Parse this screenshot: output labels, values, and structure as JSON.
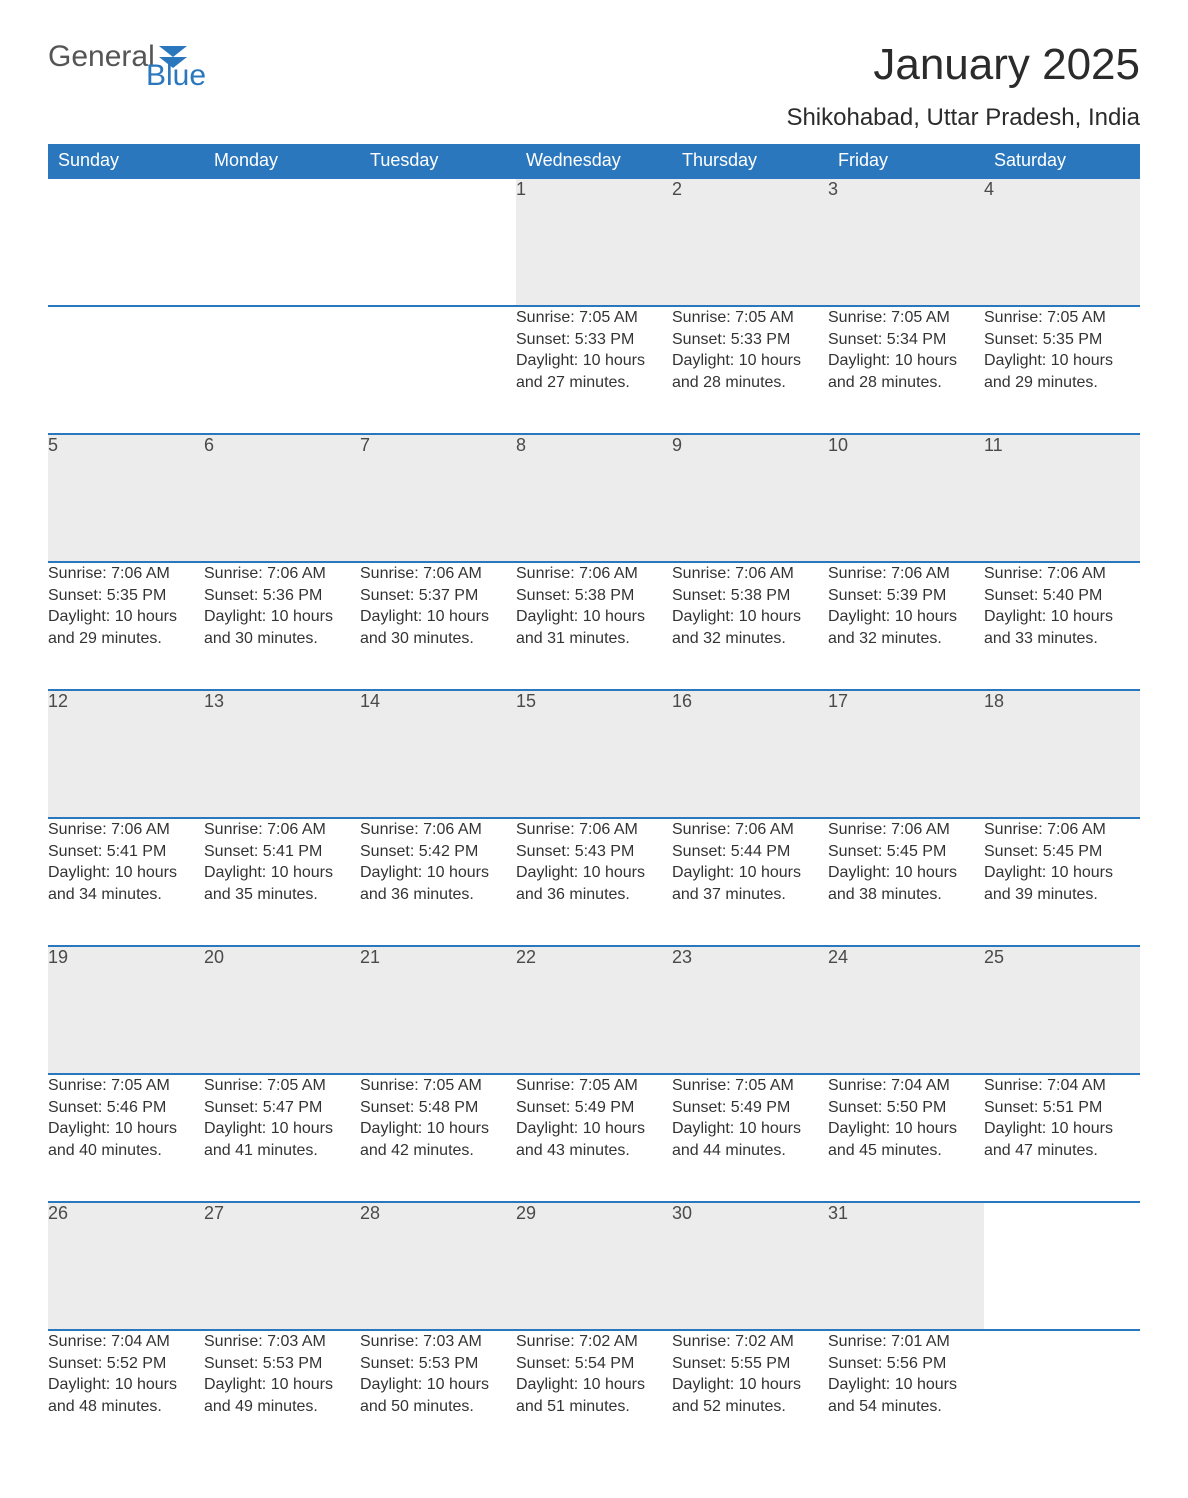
{
  "brand": {
    "part1": "General",
    "part2": "Blue",
    "accent": "#2a77be",
    "text_color": "#555555"
  },
  "title": "January 2025",
  "location": "Shikohabad, Uttar Pradesh, India",
  "day_headers": [
    "Sunday",
    "Monday",
    "Tuesday",
    "Wednesday",
    "Thursday",
    "Friday",
    "Saturday"
  ],
  "colors": {
    "header_bg": "#2a77be",
    "header_text": "#ffffff",
    "daynum_bg": "#ececec",
    "row_border": "#2a77be",
    "body_text": "#333333",
    "background": "#ffffff"
  },
  "weeks": [
    [
      null,
      null,
      null,
      {
        "n": "1",
        "sunrise": "7:05 AM",
        "sunset": "5:33 PM",
        "daylight": "10 hours and 27 minutes."
      },
      {
        "n": "2",
        "sunrise": "7:05 AM",
        "sunset": "5:33 PM",
        "daylight": "10 hours and 28 minutes."
      },
      {
        "n": "3",
        "sunrise": "7:05 AM",
        "sunset": "5:34 PM",
        "daylight": "10 hours and 28 minutes."
      },
      {
        "n": "4",
        "sunrise": "7:05 AM",
        "sunset": "5:35 PM",
        "daylight": "10 hours and 29 minutes."
      }
    ],
    [
      {
        "n": "5",
        "sunrise": "7:06 AM",
        "sunset": "5:35 PM",
        "daylight": "10 hours and 29 minutes."
      },
      {
        "n": "6",
        "sunrise": "7:06 AM",
        "sunset": "5:36 PM",
        "daylight": "10 hours and 30 minutes."
      },
      {
        "n": "7",
        "sunrise": "7:06 AM",
        "sunset": "5:37 PM",
        "daylight": "10 hours and 30 minutes."
      },
      {
        "n": "8",
        "sunrise": "7:06 AM",
        "sunset": "5:38 PM",
        "daylight": "10 hours and 31 minutes."
      },
      {
        "n": "9",
        "sunrise": "7:06 AM",
        "sunset": "5:38 PM",
        "daylight": "10 hours and 32 minutes."
      },
      {
        "n": "10",
        "sunrise": "7:06 AM",
        "sunset": "5:39 PM",
        "daylight": "10 hours and 32 minutes."
      },
      {
        "n": "11",
        "sunrise": "7:06 AM",
        "sunset": "5:40 PM",
        "daylight": "10 hours and 33 minutes."
      }
    ],
    [
      {
        "n": "12",
        "sunrise": "7:06 AM",
        "sunset": "5:41 PM",
        "daylight": "10 hours and 34 minutes."
      },
      {
        "n": "13",
        "sunrise": "7:06 AM",
        "sunset": "5:41 PM",
        "daylight": "10 hours and 35 minutes."
      },
      {
        "n": "14",
        "sunrise": "7:06 AM",
        "sunset": "5:42 PM",
        "daylight": "10 hours and 36 minutes."
      },
      {
        "n": "15",
        "sunrise": "7:06 AM",
        "sunset": "5:43 PM",
        "daylight": "10 hours and 36 minutes."
      },
      {
        "n": "16",
        "sunrise": "7:06 AM",
        "sunset": "5:44 PM",
        "daylight": "10 hours and 37 minutes."
      },
      {
        "n": "17",
        "sunrise": "7:06 AM",
        "sunset": "5:45 PM",
        "daylight": "10 hours and 38 minutes."
      },
      {
        "n": "18",
        "sunrise": "7:06 AM",
        "sunset": "5:45 PM",
        "daylight": "10 hours and 39 minutes."
      }
    ],
    [
      {
        "n": "19",
        "sunrise": "7:05 AM",
        "sunset": "5:46 PM",
        "daylight": "10 hours and 40 minutes."
      },
      {
        "n": "20",
        "sunrise": "7:05 AM",
        "sunset": "5:47 PM",
        "daylight": "10 hours and 41 minutes."
      },
      {
        "n": "21",
        "sunrise": "7:05 AM",
        "sunset": "5:48 PM",
        "daylight": "10 hours and 42 minutes."
      },
      {
        "n": "22",
        "sunrise": "7:05 AM",
        "sunset": "5:49 PM",
        "daylight": "10 hours and 43 minutes."
      },
      {
        "n": "23",
        "sunrise": "7:05 AM",
        "sunset": "5:49 PM",
        "daylight": "10 hours and 44 minutes."
      },
      {
        "n": "24",
        "sunrise": "7:04 AM",
        "sunset": "5:50 PM",
        "daylight": "10 hours and 45 minutes."
      },
      {
        "n": "25",
        "sunrise": "7:04 AM",
        "sunset": "5:51 PM",
        "daylight": "10 hours and 47 minutes."
      }
    ],
    [
      {
        "n": "26",
        "sunrise": "7:04 AM",
        "sunset": "5:52 PM",
        "daylight": "10 hours and 48 minutes."
      },
      {
        "n": "27",
        "sunrise": "7:03 AM",
        "sunset": "5:53 PM",
        "daylight": "10 hours and 49 minutes."
      },
      {
        "n": "28",
        "sunrise": "7:03 AM",
        "sunset": "5:53 PM",
        "daylight": "10 hours and 50 minutes."
      },
      {
        "n": "29",
        "sunrise": "7:02 AM",
        "sunset": "5:54 PM",
        "daylight": "10 hours and 51 minutes."
      },
      {
        "n": "30",
        "sunrise": "7:02 AM",
        "sunset": "5:55 PM",
        "daylight": "10 hours and 52 minutes."
      },
      {
        "n": "31",
        "sunrise": "7:01 AM",
        "sunset": "5:56 PM",
        "daylight": "10 hours and 54 minutes."
      },
      null
    ]
  ],
  "labels": {
    "sunrise": "Sunrise: ",
    "sunset": "Sunset: ",
    "daylight": "Daylight: "
  }
}
